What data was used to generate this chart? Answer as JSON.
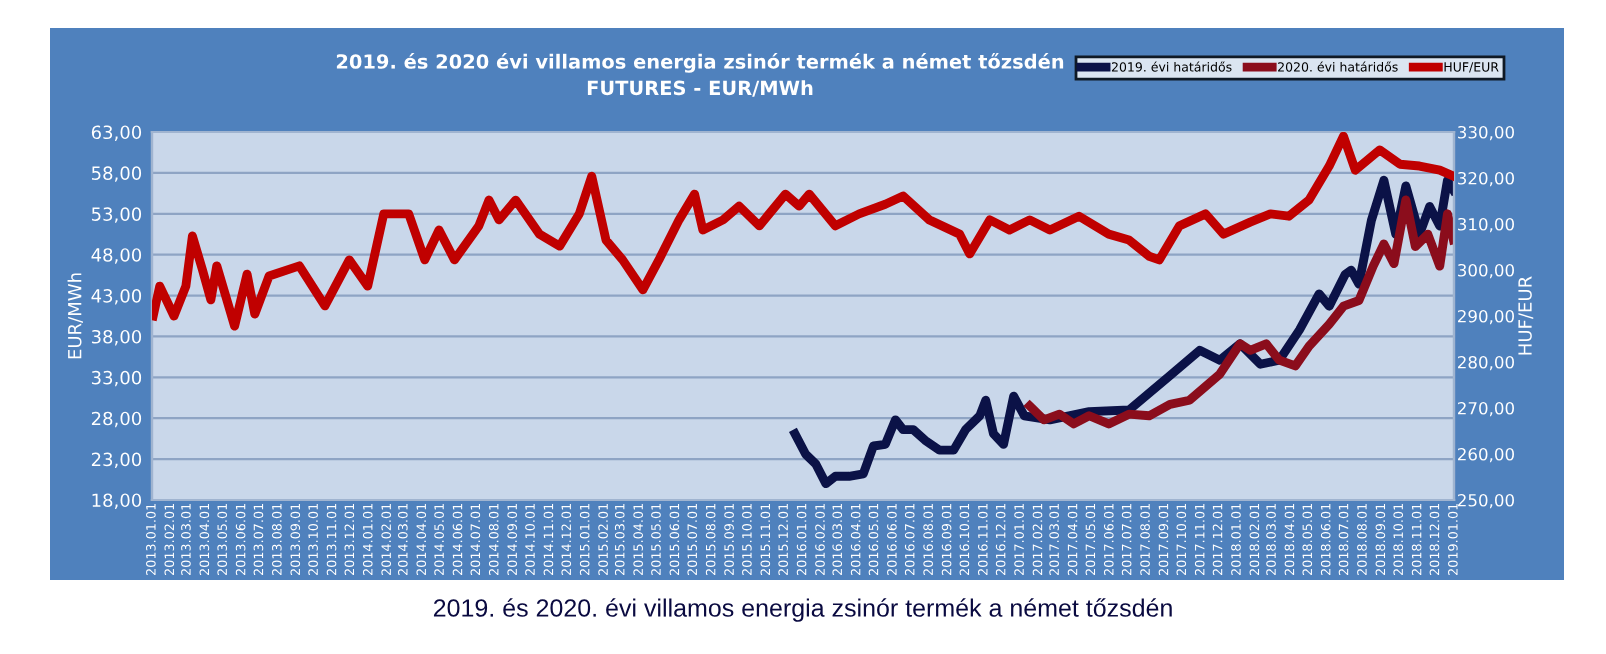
{
  "chart_data": {
    "type": "line",
    "title": "2019. és 2020 évi villamos energia zsinór termék a német tőzsdén\nFUTURES - EUR/MWh",
    "ylabel": "EUR/MWh",
    "y2label": "HUF/EUR",
    "annotations": [
      "2019. és 2020. évi villamos energia zsinór termék a német tőzsdén"
    ],
    "series": [
      {
        "name": "2019. évi határidős",
        "color": "#0b1247",
        "axis": "y",
        "x": [
          "2015-12-19",
          "2016-01-06",
          "2016-01-23",
          "2016-02-09",
          "2016-02-25",
          "2016-03-19",
          "2016-04-12",
          "2016-04-29",
          "2016-05-19",
          "2016-06-05",
          "2016-06-18",
          "2016-07-05",
          "2016-07-25",
          "2016-08-18",
          "2016-09-11",
          "2016-10-01",
          "2016-10-25",
          "2016-11-04",
          "2016-11-17",
          "2016-12-04",
          "2016-12-21",
          "2017-01-08",
          "2017-02-20",
          "2017-04-27",
          "2017-07-03",
          "2017-09-10",
          "2017-10-30",
          "2017-12-03",
          "2018-01-06",
          "2018-02-09",
          "2018-03-13",
          "2018-04-16",
          "2018-05-19",
          "2018-06-05",
          "2018-07-02",
          "2018-07-12",
          "2018-07-25",
          "2018-08-15",
          "2018-09-05",
          "2018-09-25",
          "2018-10-12",
          "2018-11-04",
          "2018-11-21",
          "2018-12-08",
          "2018-12-21",
          "2018-12-31"
        ],
        "values": [
          26.1,
          23.6,
          22.4,
          20.0,
          20.9,
          20.9,
          21.2,
          24.6,
          24.8,
          27.8,
          26.6,
          26.6,
          25.3,
          24.1,
          24.1,
          26.6,
          28.3,
          30.2,
          26.1,
          24.8,
          30.7,
          28.3,
          27.8,
          28.8,
          29.0,
          33.2,
          36.3,
          35.1,
          37.1,
          34.6,
          35.1,
          38.8,
          43.2,
          41.7,
          45.6,
          46.1,
          44.4,
          52.2,
          57.1,
          50.5,
          56.4,
          50.5,
          53.9,
          51.5,
          57.1,
          55.9
        ]
      },
      {
        "name": "2020. évi határidős",
        "color": "#8b0d1c",
        "axis": "y",
        "x": [
          "2017-01-17",
          "2017-02-10",
          "2017-03-08",
          "2017-04-01",
          "2017-04-27",
          "2017-05-30",
          "2017-07-03",
          "2017-08-06",
          "2017-09-10",
          "2017-10-13",
          "2017-11-09",
          "2017-12-03",
          "2018-01-06",
          "2018-01-23",
          "2018-02-19",
          "2018-03-13",
          "2018-04-09",
          "2018-05-02",
          "2018-06-05",
          "2018-06-29",
          "2018-07-25",
          "2018-08-18",
          "2018-09-05",
          "2018-09-22",
          "2018-10-12",
          "2018-10-28",
          "2018-11-18",
          "2018-12-08",
          "2018-12-21",
          "2018-12-31"
        ],
        "values": [
          29.5,
          27.8,
          28.5,
          27.3,
          28.3,
          27.3,
          28.5,
          28.3,
          29.7,
          30.2,
          31.9,
          33.4,
          37.1,
          36.3,
          37.1,
          35.1,
          34.4,
          36.8,
          39.5,
          41.7,
          42.4,
          46.6,
          49.3,
          46.9,
          54.7,
          49.0,
          50.5,
          46.6,
          53.0,
          49.8
        ]
      },
      {
        "name": "HUF/EUR",
        "color": "#c00000",
        "axis": "y2",
        "x": [
          "2013-01-03",
          "2013-01-14",
          "2013-02-07",
          "2013-02-27",
          "2013-03-10",
          "2013-03-27",
          "2013-04-10",
          "2013-04-20",
          "2013-05-20",
          "2013-06-10",
          "2013-06-23",
          "2013-07-17",
          "2013-09-06",
          "2013-10-19",
          "2013-11-29",
          "2013-12-30",
          "2014-01-26",
          "2014-03-09",
          "2014-04-05",
          "2014-04-29",
          "2014-05-25",
          "2014-07-05",
          "2014-07-22",
          "2014-08-08",
          "2014-09-05",
          "2014-10-15",
          "2014-11-18",
          "2014-12-21",
          "2015-01-11",
          "2015-02-04",
          "2015-03-04",
          "2015-04-07",
          "2015-05-04",
          "2015-06-07",
          "2015-07-03",
          "2015-07-17",
          "2015-08-20",
          "2015-09-16",
          "2015-10-20",
          "2015-12-03",
          "2015-12-26",
          "2016-01-12",
          "2016-02-25",
          "2016-04-05",
          "2016-05-19",
          "2016-06-18",
          "2016-08-01",
          "2016-09-21",
          "2016-10-08",
          "2016-11-11",
          "2016-12-14",
          "2017-01-17",
          "2017-02-20",
          "2017-04-10",
          "2017-05-30",
          "2017-07-03",
          "2017-08-06",
          "2017-08-23",
          "2017-09-26",
          "2017-11-09",
          "2017-12-09",
          "2018-01-23",
          "2018-02-26",
          "2018-03-29",
          "2018-05-02",
          "2018-06-05",
          "2018-06-29",
          "2018-07-19",
          "2018-08-29",
          "2018-10-02",
          "2018-11-04",
          "2018-12-08",
          "2018-12-31"
        ],
        "values": [
          290.0,
          296.5,
          290.0,
          296.5,
          307.4,
          300.0,
          293.5,
          300.9,
          287.8,
          299.1,
          290.4,
          298.7,
          300.9,
          292.2,
          302.2,
          296.5,
          312.2,
          312.2,
          302.2,
          308.7,
          302.2,
          309.6,
          315.2,
          310.9,
          315.2,
          307.8,
          305.2,
          312.2,
          320.4,
          306.5,
          302.2,
          295.7,
          302.2,
          310.9,
          316.5,
          308.7,
          310.9,
          313.9,
          309.6,
          316.5,
          313.9,
          316.5,
          309.6,
          312.2,
          314.3,
          316.1,
          310.9,
          307.8,
          303.5,
          310.9,
          308.7,
          310.9,
          308.7,
          311.7,
          307.8,
          306.5,
          303.0,
          302.2,
          309.6,
          312.2,
          307.8,
          310.4,
          312.2,
          311.7,
          315.2,
          322.6,
          329.1,
          321.7,
          326.1,
          323.0,
          322.6,
          321.7,
          320.4
        ]
      }
    ],
    "xlim": [
      "2013-01-01",
      "2019-01-01"
    ],
    "xticks": [
      {
        "value": "2013-01-01",
        "label": "2013.01.01"
      },
      {
        "value": "2013-02-01",
        "label": "2013.02.01"
      },
      {
        "value": "2013-03-01",
        "label": "2013.03.01"
      },
      {
        "value": "2013-04-01",
        "label": "2013.04.01"
      },
      {
        "value": "2013-05-01",
        "label": "2013.05.01"
      },
      {
        "value": "2013-06-01",
        "label": "2013.06.01"
      },
      {
        "value": "2013-07-01",
        "label": "2013.07.01"
      },
      {
        "value": "2013-08-01",
        "label": "2013.08.01"
      },
      {
        "value": "2013-09-01",
        "label": "2013.09.01"
      },
      {
        "value": "2013-10-01",
        "label": "2013.10.01"
      },
      {
        "value": "2013-11-01",
        "label": "2013.11.01"
      },
      {
        "value": "2013-12-01",
        "label": "2013.12.01"
      },
      {
        "value": "2014-01-01",
        "label": "2014.01.01"
      },
      {
        "value": "2014-02-01",
        "label": "2014.02.01"
      },
      {
        "value": "2014-03-01",
        "label": "2014.03.01"
      },
      {
        "value": "2014-04-01",
        "label": "2014.04.01"
      },
      {
        "value": "2014-05-01",
        "label": "2014.05.01"
      },
      {
        "value": "2014-06-01",
        "label": "2014.06.01"
      },
      {
        "value": "2014-07-01",
        "label": "2014.07.01"
      },
      {
        "value": "2014-08-01",
        "label": "2014.08.01"
      },
      {
        "value": "2014-09-01",
        "label": "2014.09.01"
      },
      {
        "value": "2014-10-01",
        "label": "2014.10.01"
      },
      {
        "value": "2014-11-01",
        "label": "2014.11.01"
      },
      {
        "value": "2014-12-01",
        "label": "2014.12.01"
      },
      {
        "value": "2015-01-01",
        "label": "2015.01.01"
      },
      {
        "value": "2015-02-01",
        "label": "2015.02.01"
      },
      {
        "value": "2015-03-01",
        "label": "2015.03.01"
      },
      {
        "value": "2015-04-01",
        "label": "2015.04.01"
      },
      {
        "value": "2015-05-01",
        "label": "2015.05.01"
      },
      {
        "value": "2015-06-01",
        "label": "2015.06.01"
      },
      {
        "value": "2015-07-01",
        "label": "2015.07.01"
      },
      {
        "value": "2015-08-01",
        "label": "2015.08.01"
      },
      {
        "value": "2015-09-01",
        "label": "2015.09.01"
      },
      {
        "value": "2015-10-01",
        "label": "2015.10.01"
      },
      {
        "value": "2015-11-01",
        "label": "2015.11.01"
      },
      {
        "value": "2015-12-01",
        "label": "2015.12.01"
      },
      {
        "value": "2016-01-01",
        "label": "2016.01.01"
      },
      {
        "value": "2016-02-01",
        "label": "2016.02.01"
      },
      {
        "value": "2016-03-01",
        "label": "2016.03.01"
      },
      {
        "value": "2016-04-01",
        "label": "2016.04.01"
      },
      {
        "value": "2016-05-01",
        "label": "2016.05.01"
      },
      {
        "value": "2016-06-01",
        "label": "2016.06.01"
      },
      {
        "value": "2016-07-01",
        "label": "2016.07.01"
      },
      {
        "value": "2016-08-01",
        "label": "2016.08.01"
      },
      {
        "value": "2016-09-01",
        "label": "2016.09.01"
      },
      {
        "value": "2016-10-01",
        "label": "2016.10.01"
      },
      {
        "value": "2016-11-01",
        "label": "2016.11.01"
      },
      {
        "value": "2016-12-01",
        "label": "2016.12.01"
      },
      {
        "value": "2017-01-01",
        "label": "2017.01.01"
      },
      {
        "value": "2017-02-01",
        "label": "2017.02.01"
      },
      {
        "value": "2017-03-01",
        "label": "2017.03.01"
      },
      {
        "value": "2017-04-01",
        "label": "2017.04.01"
      },
      {
        "value": "2017-05-01",
        "label": "2017.05.01"
      },
      {
        "value": "2017-06-01",
        "label": "2017.06.01"
      },
      {
        "value": "2017-07-01",
        "label": "2017.07.01"
      },
      {
        "value": "2017-08-01",
        "label": "2017.08.01"
      },
      {
        "value": "2017-09-01",
        "label": "2017.09.01"
      },
      {
        "value": "2017-10-01",
        "label": "2017.10.01"
      },
      {
        "value": "2017-11-01",
        "label": "2017.11.01"
      },
      {
        "value": "2017-12-01",
        "label": "2017.12.01"
      },
      {
        "value": "2018-01-01",
        "label": "2018.01.01"
      },
      {
        "value": "2018-02-01",
        "label": "2018.02.01"
      },
      {
        "value": "2018-03-01",
        "label": "2018.03.01"
      },
      {
        "value": "2018-04-01",
        "label": "2018.04.01"
      },
      {
        "value": "2018-05-01",
        "label": "2018.05.01"
      },
      {
        "value": "2018-06-01",
        "label": "2018.06.01"
      },
      {
        "value": "2018-07-01",
        "label": "2018.07.01"
      },
      {
        "value": "2018-08-01",
        "label": "2018.08.01"
      },
      {
        "value": "2018-09-01",
        "label": "2018.09.01"
      },
      {
        "value": "2018-10-01",
        "label": "2018.10.01"
      },
      {
        "value": "2018-11-01",
        "label": "2018.11.01"
      },
      {
        "value": "2018-12-01",
        "label": "2018.12.01"
      },
      {
        "value": "2019-01-01",
        "label": "2019.01.01"
      }
    ],
    "ylim": [
      18,
      63
    ],
    "yticks": [
      {
        "value": 18,
        "label": "18,00"
      },
      {
        "value": 23,
        "label": "23,00"
      },
      {
        "value": 28,
        "label": "28,00"
      },
      {
        "value": 33,
        "label": "33,00"
      },
      {
        "value": 38,
        "label": "38,00"
      },
      {
        "value": 43,
        "label": "43,00"
      },
      {
        "value": 48,
        "label": "48,00"
      },
      {
        "value": 53,
        "label": "53,00"
      },
      {
        "value": 58,
        "label": "58,00"
      },
      {
        "value": 63,
        "label": "63,00"
      }
    ],
    "y2lim": [
      250,
      330
    ],
    "y2ticks": [
      {
        "value": 250,
        "label": "250,00"
      },
      {
        "value": 260,
        "label": "260,00"
      },
      {
        "value": 270,
        "label": "270,00"
      },
      {
        "value": 280,
        "label": "280,00"
      },
      {
        "value": 290,
        "label": "290,00"
      },
      {
        "value": 300,
        "label": "300,00"
      },
      {
        "value": 310,
        "label": "310,00"
      },
      {
        "value": 320,
        "label": "320,00"
      },
      {
        "value": 330,
        "label": "330,00"
      }
    ],
    "grid": "y",
    "legend": "top right",
    "line_style": "solid"
  }
}
